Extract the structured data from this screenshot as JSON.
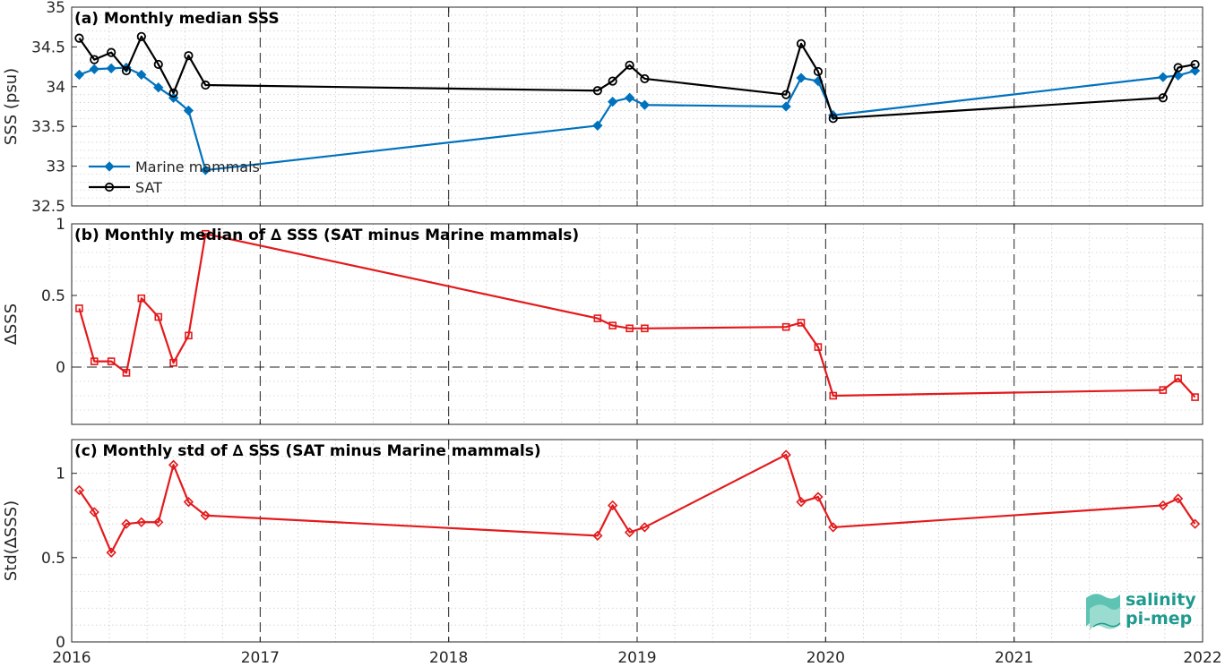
{
  "colors": {
    "marine": "#0072BD",
    "sat": "#000000",
    "delta": "#e31a1c",
    "logo": "#1f9a8e"
  },
  "logo": {
    "line1": "salinity",
    "line2": "pi-mep"
  },
  "x_axis": {
    "range": [
      2016.0,
      2022.0
    ],
    "ticks": [
      2016,
      2017,
      2018,
      2019,
      2020,
      2021,
      2022
    ],
    "tick_labels": [
      "2016",
      "2017",
      "2018",
      "2019",
      "2020",
      "2021",
      "2022"
    ]
  },
  "chart_data": [
    {
      "type": "line",
      "title": "(a) Monthly median SSS",
      "ylabel": "SSS (psu)",
      "ylim": [
        32.5,
        35
      ],
      "yticks": [
        32.5,
        33,
        33.5,
        34,
        34.5,
        35
      ],
      "ytick_labels": [
        "32.5",
        "33",
        "33.5",
        "34",
        "34.5",
        "35"
      ],
      "grid": true,
      "legend_position": "bottom-left",
      "series": [
        {
          "name": "Marine mammals",
          "marker": "diamond",
          "x": [
            2016.04,
            2016.12,
            2016.21,
            2016.29,
            2016.37,
            2016.46,
            2016.54,
            2016.62,
            2016.71,
            2018.79,
            2018.87,
            2018.96,
            2019.04,
            2019.79,
            2019.87,
            2019.96,
            2020.04,
            2021.79,
            2021.87,
            2021.96
          ],
          "values": [
            34.15,
            34.22,
            34.23,
            34.24,
            34.15,
            33.99,
            33.86,
            33.7,
            32.95,
            33.51,
            33.81,
            33.86,
            33.77,
            33.75,
            34.11,
            34.07,
            33.64,
            34.12,
            34.14,
            34.2
          ]
        },
        {
          "name": "SAT",
          "marker": "circle",
          "x": [
            2016.04,
            2016.12,
            2016.21,
            2016.29,
            2016.37,
            2016.46,
            2016.54,
            2016.62,
            2016.71,
            2018.79,
            2018.87,
            2018.96,
            2019.04,
            2019.79,
            2019.87,
            2019.96,
            2020.04,
            2021.79,
            2021.87,
            2021.96
          ],
          "values": [
            34.61,
            34.34,
            34.43,
            34.2,
            34.63,
            34.28,
            33.92,
            34.39,
            34.02,
            33.95,
            34.07,
            34.27,
            34.1,
            33.9,
            34.54,
            34.19,
            33.6,
            33.86,
            34.24,
            34.28
          ]
        }
      ]
    },
    {
      "type": "line",
      "title": "(b) Monthly median of ∆ SSS (SAT minus Marine mammals)",
      "ylabel": "∆SSS",
      "ylim": [
        -0.4,
        1
      ],
      "yticks": [
        0,
        0.5,
        1
      ],
      "ytick_labels": [
        "0",
        "0.5",
        "1"
      ],
      "grid": true,
      "zero_line": true,
      "series": [
        {
          "marker": "square",
          "x": [
            2016.04,
            2016.12,
            2016.21,
            2016.29,
            2016.37,
            2016.46,
            2016.54,
            2016.62,
            2016.71,
            2018.79,
            2018.87,
            2018.96,
            2019.04,
            2019.79,
            2019.87,
            2019.96,
            2020.04,
            2021.79,
            2021.87,
            2021.96
          ],
          "values": [
            0.41,
            0.04,
            0.04,
            -0.04,
            0.48,
            0.35,
            0.03,
            0.22,
            0.93,
            0.34,
            0.29,
            0.27,
            0.27,
            0.28,
            0.31,
            0.14,
            -0.2,
            -0.16,
            -0.08,
            -0.21
          ]
        }
      ]
    },
    {
      "type": "line",
      "title": "(c) Monthly std of ∆ SSS (SAT minus Marine mammals)",
      "ylabel": "Std(∆SSS)",
      "ylim": [
        0,
        1.2
      ],
      "yticks": [
        0,
        0.5,
        1
      ],
      "ytick_labels": [
        "0",
        "0.5",
        "1"
      ],
      "grid": true,
      "series": [
        {
          "marker": "diamond",
          "x": [
            2016.04,
            2016.12,
            2016.21,
            2016.29,
            2016.37,
            2016.46,
            2016.54,
            2016.62,
            2016.71,
            2018.79,
            2018.87,
            2018.96,
            2019.04,
            2019.79,
            2019.87,
            2019.96,
            2020.04,
            2021.79,
            2021.87,
            2021.96
          ],
          "values": [
            0.9,
            0.77,
            0.53,
            0.7,
            0.71,
            0.71,
            1.05,
            0.83,
            0.75,
            0.63,
            0.81,
            0.65,
            0.68,
            1.11,
            0.83,
            0.86,
            0.68,
            0.81,
            0.85,
            0.7
          ]
        }
      ]
    }
  ]
}
